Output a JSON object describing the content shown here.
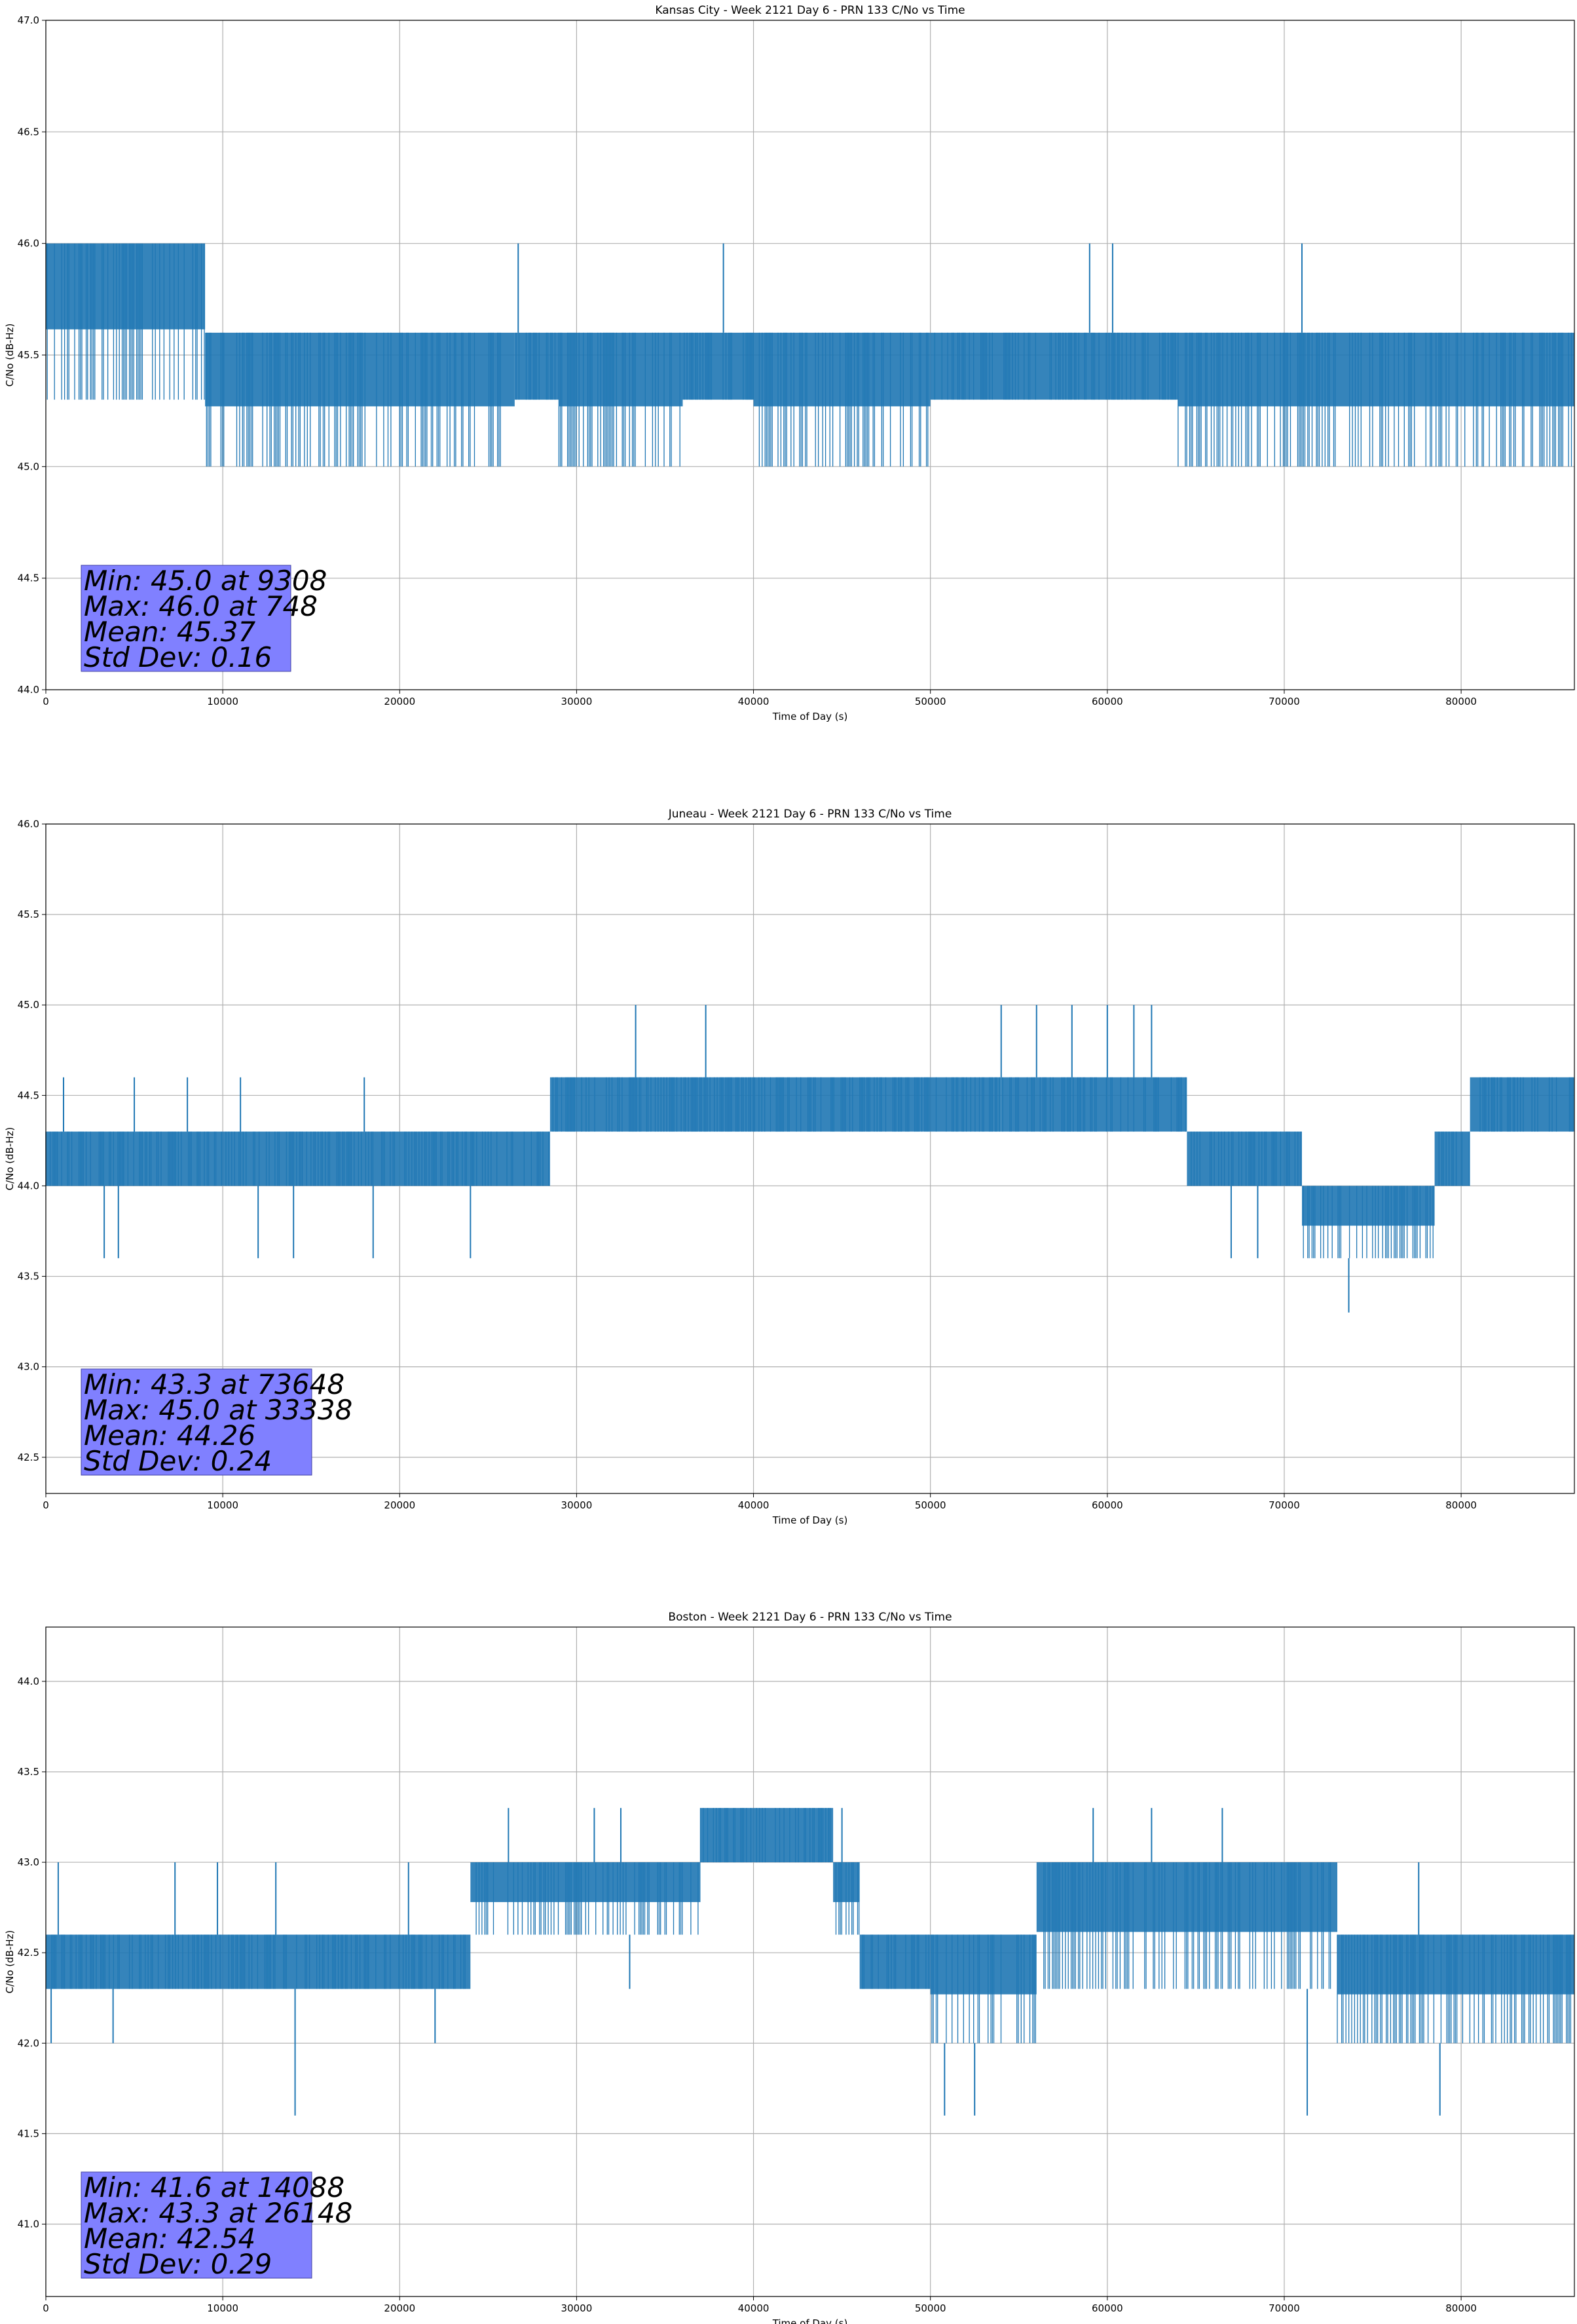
{
  "chart_data": [
    {
      "type": "line",
      "title": "Kansas City - Week 2121 Day 6 - PRN 133 C/No vs Time",
      "xlabel": "Time of Day (s)",
      "ylabel": "C/No (dB-Hz)",
      "xlim": [
        0,
        86400
      ],
      "ylim": [
        44.0,
        47.0
      ],
      "xticks": [
        "0",
        "10000",
        "20000",
        "30000",
        "40000",
        "50000",
        "60000",
        "70000",
        "80000"
      ],
      "yticks": [
        "44.0",
        "44.5",
        "45.0",
        "45.5",
        "46.0",
        "46.5",
        "47.0"
      ],
      "grid": true,
      "series_color": "#1f77b4",
      "band": {
        "low": 45.3,
        "high": 45.6
      },
      "level_segments": [
        {
          "x": [
            0,
            9000
          ],
          "upper": 46.0,
          "lower": 45.3
        },
        {
          "x": [
            9000,
            26500
          ],
          "upper": 45.6,
          "lower": 45.0
        },
        {
          "x": [
            26500,
            29000
          ],
          "upper": 45.6,
          "lower": 45.3
        },
        {
          "x": [
            29000,
            36000
          ],
          "upper": 45.6,
          "lower": 45.0
        },
        {
          "x": [
            36000,
            40000
          ],
          "upper": 45.6,
          "lower": 45.3
        },
        {
          "x": [
            40000,
            50000
          ],
          "upper": 45.6,
          "lower": 45.0
        },
        {
          "x": [
            50000,
            64000
          ],
          "upper": 45.6,
          "lower": 45.3
        },
        {
          "x": [
            64000,
            86400
          ],
          "upper": 45.6,
          "lower": 45.0
        }
      ],
      "spikes_up": [
        {
          "x": 748,
          "y": 46.0
        },
        {
          "x": 1500,
          "y": 46.0
        },
        {
          "x": 2500,
          "y": 46.0
        },
        {
          "x": 3600,
          "y": 46.0
        },
        {
          "x": 5000,
          "y": 46.0
        },
        {
          "x": 6200,
          "y": 46.0
        },
        {
          "x": 7700,
          "y": 46.0
        },
        {
          "x": 26700,
          "y": 46.0
        },
        {
          "x": 38300,
          "y": 46.0
        },
        {
          "x": 59000,
          "y": 46.0
        },
        {
          "x": 60300,
          "y": 46.0
        },
        {
          "x": 71000,
          "y": 46.0
        }
      ],
      "spikes_down": [],
      "stats": {
        "lines": [
          "Min: 45.0 at 9308",
          "Max: 46.0 at 748",
          "Mean: 45.37",
          "Std Dev: 0.16"
        ],
        "box_color": "#8080ff"
      }
    },
    {
      "type": "line",
      "title": "Juneau - Week 2121 Day 6 - PRN 133 C/No vs Time",
      "xlabel": "Time of Day (s)",
      "ylabel": "C/No (dB-Hz)",
      "xlim": [
        0,
        86400
      ],
      "ylim": [
        42.3,
        46.0
      ],
      "xticks": [
        "0",
        "10000",
        "20000",
        "30000",
        "40000",
        "50000",
        "60000",
        "70000",
        "80000"
      ],
      "yticks": [
        "42.5",
        "43.0",
        "43.5",
        "44.0",
        "44.5",
        "45.0",
        "45.5",
        "46.0"
      ],
      "grid": true,
      "series_color": "#1f77b4",
      "level_segments": [
        {
          "x": [
            0,
            28500
          ],
          "upper": 44.3,
          "lower": 44.0
        },
        {
          "x": [
            28500,
            54000
          ],
          "upper": 44.6,
          "lower": 44.3
        },
        {
          "x": [
            54000,
            64500
          ],
          "upper": 44.6,
          "lower": 44.3
        },
        {
          "x": [
            64500,
            71000
          ],
          "upper": 44.3,
          "lower": 44.0
        },
        {
          "x": [
            71000,
            78500
          ],
          "upper": 44.0,
          "lower": 43.6
        },
        {
          "x": [
            78500,
            80500
          ],
          "upper": 44.3,
          "lower": 44.0
        },
        {
          "x": [
            80500,
            86400
          ],
          "upper": 44.6,
          "lower": 44.3
        }
      ],
      "spikes_up": [
        {
          "x": 1000,
          "y": 44.6
        },
        {
          "x": 5000,
          "y": 44.6
        },
        {
          "x": 8000,
          "y": 44.6
        },
        {
          "x": 11000,
          "y": 44.6
        },
        {
          "x": 18000,
          "y": 44.6
        },
        {
          "x": 33338,
          "y": 45.0
        },
        {
          "x": 37300,
          "y": 45.0
        },
        {
          "x": 54000,
          "y": 45.0
        },
        {
          "x": 56000,
          "y": 45.0
        },
        {
          "x": 58000,
          "y": 45.0
        },
        {
          "x": 60000,
          "y": 45.0
        },
        {
          "x": 61500,
          "y": 45.0
        },
        {
          "x": 62500,
          "y": 45.0
        }
      ],
      "spikes_down": [
        {
          "x": 3300,
          "y": 43.6
        },
        {
          "x": 4100,
          "y": 43.6
        },
        {
          "x": 12000,
          "y": 43.6
        },
        {
          "x": 14000,
          "y": 43.6
        },
        {
          "x": 18500,
          "y": 43.6
        },
        {
          "x": 24000,
          "y": 43.6
        },
        {
          "x": 67000,
          "y": 43.6
        },
        {
          "x": 68500,
          "y": 43.6
        },
        {
          "x": 73648,
          "y": 43.3
        }
      ],
      "stats": {
        "lines": [
          "Min: 43.3 at 73648",
          "Max: 45.0 at 33338",
          "Mean: 44.26",
          "Std Dev: 0.24"
        ],
        "box_color": "#8080ff"
      }
    },
    {
      "type": "line",
      "title": "Boston - Week 2121 Day 6 - PRN 133 C/No vs Time",
      "xlabel": "Time of Day (s)",
      "ylabel": "C/No (dB-Hz)",
      "xlim": [
        0,
        86400
      ],
      "ylim": [
        40.6,
        44.3
      ],
      "xticks": [
        "0",
        "10000",
        "20000",
        "30000",
        "40000",
        "50000",
        "60000",
        "70000",
        "80000"
      ],
      "yticks": [
        "41.0",
        "41.5",
        "42.0",
        "42.5",
        "43.0",
        "43.5",
        "44.0"
      ],
      "grid": true,
      "series_color": "#1f77b4",
      "level_segments": [
        {
          "x": [
            0,
            24000
          ],
          "upper": 42.6,
          "lower": 42.3
        },
        {
          "x": [
            24000,
            37000
          ],
          "upper": 43.0,
          "lower": 42.6
        },
        {
          "x": [
            37000,
            44500
          ],
          "upper": 43.3,
          "lower": 43.0
        },
        {
          "x": [
            44500,
            46000
          ],
          "upper": 43.0,
          "lower": 42.6
        },
        {
          "x": [
            46000,
            50000
          ],
          "upper": 42.6,
          "lower": 42.3
        },
        {
          "x": [
            50000,
            56000
          ],
          "upper": 42.6,
          "lower": 42.0
        },
        {
          "x": [
            56000,
            73000
          ],
          "upper": 43.0,
          "lower": 42.3
        },
        {
          "x": [
            73000,
            86400
          ],
          "upper": 42.6,
          "lower": 42.0
        }
      ],
      "spikes_up": [
        {
          "x": 700,
          "y": 43.0
        },
        {
          "x": 7300,
          "y": 43.0
        },
        {
          "x": 9700,
          "y": 43.0
        },
        {
          "x": 13000,
          "y": 43.0
        },
        {
          "x": 20500,
          "y": 43.0
        },
        {
          "x": 26148,
          "y": 43.3
        },
        {
          "x": 31000,
          "y": 43.3
        },
        {
          "x": 32500,
          "y": 43.3
        },
        {
          "x": 45000,
          "y": 43.3
        },
        {
          "x": 59200,
          "y": 43.3
        },
        {
          "x": 62500,
          "y": 43.3
        },
        {
          "x": 66500,
          "y": 43.3
        },
        {
          "x": 77600,
          "y": 43.0
        }
      ],
      "spikes_down": [
        {
          "x": 300,
          "y": 42.0
        },
        {
          "x": 3800,
          "y": 42.0
        },
        {
          "x": 14088,
          "y": 41.6
        },
        {
          "x": 22000,
          "y": 42.0
        },
        {
          "x": 33000,
          "y": 42.3
        },
        {
          "x": 50800,
          "y": 41.6
        },
        {
          "x": 52500,
          "y": 41.6
        },
        {
          "x": 71300,
          "y": 41.6
        },
        {
          "x": 78800,
          "y": 41.6
        }
      ],
      "stats": {
        "lines": [
          "Min: 41.6 at 14088",
          "Max: 43.3 at 26148",
          "Mean: 42.54",
          "Std Dev: 0.29"
        ],
        "box_color": "#8080ff"
      }
    }
  ]
}
